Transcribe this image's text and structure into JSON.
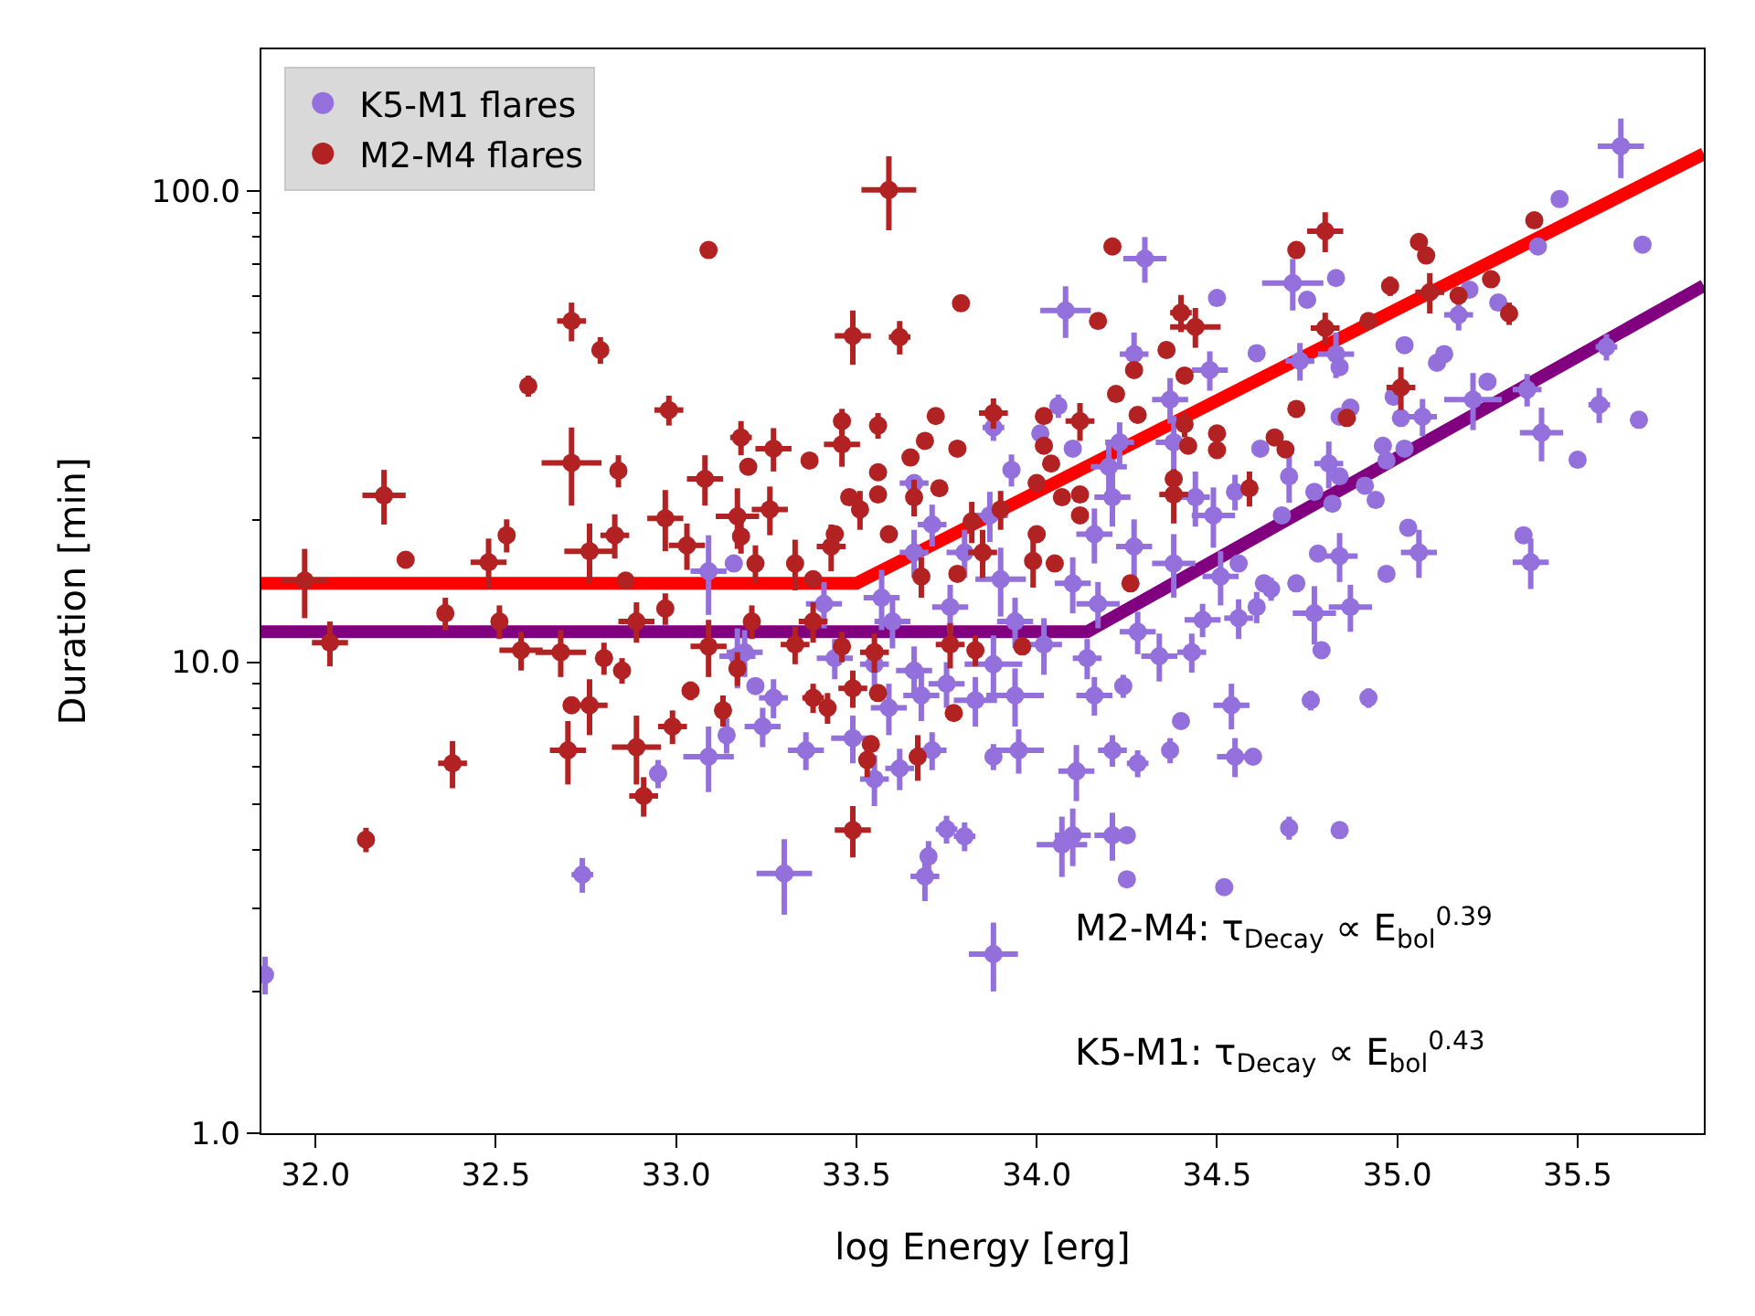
{
  "chart_data": {
    "type": "scatter",
    "xlabel": "log Energy [erg]",
    "ylabel": "Duration [min]",
    "xlim": [
      31.85,
      35.85
    ],
    "xticks": [
      {
        "value": 32,
        "label": "32.0"
      },
      {
        "value": 32.5,
        "label": "32.5"
      },
      {
        "value": 33,
        "label": "33.0"
      },
      {
        "value": 33.5,
        "label": "33.5"
      },
      {
        "value": 34,
        "label": "34.0"
      },
      {
        "value": 34.5,
        "label": "34.5"
      },
      {
        "value": 35,
        "label": "35.0"
      },
      {
        "value": 35.5,
        "label": "35.5"
      }
    ],
    "ylim": [
      1,
      200
    ],
    "yticks": [
      {
        "value": 1,
        "label": "1.0"
      },
      {
        "value": 2,
        "label": null
      },
      {
        "value": 3,
        "label": null
      },
      {
        "value": 4,
        "label": null
      },
      {
        "value": 5,
        "label": null
      },
      {
        "value": 6,
        "label": null
      },
      {
        "value": 7,
        "label": null
      },
      {
        "value": 8,
        "label": null
      },
      {
        "value": 9,
        "label": null
      },
      {
        "value": 10,
        "label": "10.0"
      },
      {
        "value": 20,
        "label": null
      },
      {
        "value": 30,
        "label": null
      },
      {
        "value": 40,
        "label": null
      },
      {
        "value": 50,
        "label": null
      },
      {
        "value": 60,
        "label": null
      },
      {
        "value": 70,
        "label": null
      },
      {
        "value": 80,
        "label": null
      },
      {
        "value": 90,
        "label": null
      },
      {
        "value": 100,
        "label": "100.0"
      }
    ],
    "log": "y",
    "legend": "top left",
    "marker": "circle",
    "series": [
      {
        "type": "line",
        "marker": "none",
        "color": "#800080",
        "x": [
          31.85,
          34.14,
          35.85
        ],
        "values": [
          11.6,
          11.6,
          63
        ]
      },
      {
        "type": "line",
        "marker": "none",
        "color": "#ff0000",
        "x": [
          31.85,
          33.5,
          35.85
        ],
        "values": [
          14.7,
          14.7,
          120
        ]
      },
      {
        "name": "K5-M1 flares",
        "color": "#9370db",
        "x": [
          31.86,
          32.74,
          32.95,
          33.09,
          33.14,
          33.17,
          33.09,
          33.16,
          33.3,
          33.69,
          33.7,
          33.75,
          33.8,
          33.88,
          34.07,
          34.1,
          34.21,
          34.25,
          34.25,
          34.52,
          34.11,
          34.37,
          34.4,
          34.21,
          34.28,
          33.95,
          33.88,
          33.71,
          33.62,
          33.55,
          33.36,
          33.24,
          33.27,
          33.49,
          33.59,
          33.68,
          33.83,
          33.94,
          34.16,
          34.24,
          34.54,
          34.55,
          34.46,
          34.34,
          34.43,
          34.14,
          34.02,
          33.88,
          33.75,
          33.66,
          33.55,
          33.44,
          33.19,
          33.76,
          33.94,
          34.17,
          34.28,
          33.6,
          33.41,
          34.87,
          34.77,
          34.79,
          34.61,
          34.56,
          34.65,
          34.76,
          34.92,
          34.6,
          34.7,
          34.84,
          34.3,
          34.08,
          34.5,
          34.27,
          34.48,
          34.37,
          34.06,
          34.1,
          34.23,
          33.93,
          34.01,
          34.2,
          34.21,
          34.38,
          34.49,
          34.55,
          34.44,
          33.87,
          33.71,
          33.66,
          33.88,
          34.16,
          34.27,
          34.38,
          34.51,
          34.1,
          33.9,
          33.8,
          33.66,
          33.57,
          35.62,
          35.45,
          35.39,
          35.68,
          34.71,
          34.83,
          34.75,
          35.2,
          35.28,
          35.17,
          34.61,
          34.73,
          34.83,
          34.84,
          35.02,
          35.11,
          35.13,
          35.58,
          35.25,
          35.36,
          35.21,
          35.56,
          35.67,
          35.4,
          35.5,
          34.99,
          35.01,
          35.07,
          34.87,
          34.84,
          34.96,
          35.02,
          34.97,
          34.81,
          34.84,
          34.91,
          34.94,
          34.82,
          34.77,
          34.7,
          34.62,
          34.68,
          35.03,
          35.06,
          35.35,
          35.37,
          34.78,
          34.84,
          34.97,
          34.72,
          34.56,
          34.63,
          33.22
        ],
        "values": [
          2.17,
          3.54,
          5.8,
          6.3,
          7.0,
          10.3,
          15.6,
          16.2,
          3.56,
          3.51,
          3.87,
          4.42,
          4.27,
          2.4,
          4.1,
          4.29,
          4.29,
          4.29,
          3.46,
          3.33,
          5.87,
          6.5,
          7.5,
          6.5,
          6.1,
          6.5,
          6.3,
          6.5,
          5.95,
          5.65,
          6.5,
          7.3,
          8.4,
          6.9,
          8.0,
          8.5,
          8.3,
          8.5,
          8.5,
          8.9,
          8.1,
          6.3,
          12.3,
          10.3,
          10.5,
          10.2,
          10.9,
          9.9,
          9.0,
          9.6,
          9.9,
          10.2,
          10.5,
          13.1,
          12.2,
          13.3,
          11.6,
          12.2,
          13.3,
          13.1,
          12.7,
          10.6,
          13.1,
          12.4,
          14.3,
          8.3,
          8.4,
          6.3,
          4.45,
          4.4,
          71.9,
          55.8,
          59.3,
          45.1,
          41.7,
          36.1,
          35.0,
          28.4,
          29.3,
          25.6,
          30.6,
          26.0,
          22.4,
          29.3,
          20.5,
          23.0,
          22.4,
          20.5,
          19.6,
          24.0,
          31.5,
          18.7,
          17.6,
          16.2,
          15.2,
          14.7,
          15.0,
          17.1,
          17.1,
          13.7,
          124.6,
          96.2,
          76.3,
          77.0,
          63.8,
          65.4,
          58.8,
          61.8,
          58.0,
          54.6,
          45.3,
          43.6,
          45.1,
          42.3,
          47.1,
          43.2,
          45.1,
          46.7,
          39.4,
          37.9,
          36.1,
          35.2,
          32.7,
          30.7,
          26.9,
          36.6,
          33.0,
          33.2,
          34.7,
          33.2,
          28.8,
          28.4,
          26.8,
          26.4,
          24.8,
          23.7,
          22.1,
          21.7,
          23.0,
          24.8,
          28.4,
          20.5,
          19.3,
          17.1,
          18.6,
          16.3,
          17.0,
          16.8,
          15.4,
          14.7,
          16.2,
          14.7,
          8.9
        ],
        "xerrors": [
          null,
          0.03,
          null,
          0.07,
          null,
          0.05,
          0.05,
          null,
          0.077,
          0.04,
          null,
          0.03,
          0.03,
          0.068,
          0.07,
          0.05,
          0.05,
          null,
          null,
          null,
          0.05,
          null,
          null,
          0.04,
          0.03,
          0.07,
          null,
          0.04,
          0.04,
          0.04,
          0.05,
          0.05,
          0.04,
          0.06,
          0.05,
          0.05,
          0.06,
          0.08,
          0.05,
          null,
          0.05,
          0.05,
          0.05,
          0.05,
          0.04,
          0.04,
          0.05,
          0.08,
          0.05,
          0.05,
          0.04,
          0.05,
          0.05,
          0.05,
          0.05,
          0.06,
          0.05,
          0.05,
          0.05,
          0.06,
          0.06,
          null,
          null,
          0.04,
          null,
          null,
          null,
          null,
          null,
          null,
          0.06,
          0.07,
          null,
          0.04,
          0.05,
          0.05,
          null,
          null,
          0.04,
          null,
          null,
          0.05,
          0.05,
          0.05,
          0.06,
          null,
          0.04,
          0.05,
          0.04,
          0.04,
          0.03,
          0.05,
          0.05,
          0.06,
          0.05,
          0.05,
          0.07,
          0.05,
          0.04,
          0.05,
          0.064,
          null,
          null,
          null,
          0.085,
          null,
          null,
          null,
          null,
          0.04,
          null,
          0.04,
          0.05,
          null,
          null,
          null,
          null,
          0.03,
          null,
          0.04,
          0.08,
          0.03,
          null,
          0.06,
          null,
          null,
          null,
          0.04,
          null,
          null,
          null,
          null,
          null,
          0.04,
          null,
          null,
          null,
          null,
          null,
          null,
          null,
          null,
          null,
          0.05,
          null,
          0.05,
          null,
          0.05,
          null,
          null,
          null,
          null,
          null
        ],
        "errors": [
          0.2,
          0.3,
          0.4,
          1.0,
          0.6,
          1.5,
          3,
          null,
          0.65,
          0.4,
          0.3,
          0.3,
          0.3,
          0.4,
          0.6,
          0.6,
          0.5,
          null,
          null,
          null,
          0.8,
          0.4,
          0.3,
          0.5,
          0.4,
          0.7,
          0.4,
          0.6,
          0.6,
          0.7,
          0.6,
          0.7,
          0.8,
          0.8,
          1.0,
          1.0,
          1.0,
          1.2,
          0.8,
          0.5,
          0.9,
          0.6,
          1.0,
          1.2,
          1.0,
          1.0,
          1.5,
          1.5,
          1.0,
          1.2,
          1.0,
          1.0,
          1.2,
          1.5,
          1.5,
          1.5,
          1.2,
          1.5,
          1.5,
          1.5,
          1.8,
          null,
          1.0,
          1.2,
          0.8,
          0.4,
          0.4,
          null,
          0.25,
          null,
          8,
          7,
          null,
          5,
          4,
          4,
          2,
          null,
          3,
          2,
          null,
          3,
          3,
          4,
          3,
          2,
          3,
          2.5,
          2,
          null,
          2,
          2.5,
          2.5,
          2.5,
          2,
          2,
          2.5,
          2,
          2,
          2,
          18,
          null,
          null,
          null,
          8,
          null,
          null,
          null,
          null,
          4,
          null,
          4,
          5,
          null,
          null,
          null,
          null,
          3,
          null,
          3,
          5,
          3,
          null,
          4,
          null,
          null,
          null,
          3,
          null,
          null,
          null,
          null,
          null,
          3,
          null,
          null,
          null,
          null,
          null,
          3,
          null,
          null,
          null,
          2,
          null,
          2,
          null,
          2,
          null,
          null,
          null,
          null,
          null
        ]
      },
      {
        "name": "M2-M4 flares",
        "color": "#b22222",
        "x": [
          33.09,
          32.71,
          32.79,
          32.59,
          32.98,
          32.71,
          32.84,
          32.19,
          33.08,
          33.18,
          32.97,
          32.25,
          32.48,
          32.53,
          32.76,
          32.83,
          31.97,
          32.86,
          33.17,
          33.03,
          32.04,
          32.36,
          32.51,
          32.57,
          32.68,
          32.8,
          32.85,
          32.71,
          32.76,
          32.7,
          32.89,
          32.91,
          32.38,
          32.14,
          32.99,
          33.04,
          33.13,
          32.97,
          32.89,
          33.09,
          33.49,
          33.53,
          33.54,
          33.67,
          33.77,
          33.56,
          33.42,
          33.38,
          33.49,
          33.17,
          33.21,
          33.33,
          33.96,
          33.76,
          33.83,
          33.55,
          33.38,
          33.46,
          33.59,
          33.49,
          33.62,
          33.79,
          34.21,
          34.17,
          34.4,
          34.44,
          34.36,
          34.41,
          34.27,
          34.22,
          34.28,
          34.02,
          34.12,
          33.88,
          33.72,
          33.69,
          33.56,
          33.46,
          33.46,
          33.78,
          33.65,
          33.37,
          33.27,
          33.2,
          33.56,
          34.02,
          34.04,
          34.41,
          34.42,
          34.5,
          34.5,
          34.38,
          34.38,
          34.12,
          34.07,
          34.0,
          33.9,
          33.82,
          33.73,
          33.66,
          33.56,
          33.48,
          33.51,
          33.26,
          33.59,
          33.44,
          33.43,
          33.18,
          33.33,
          33.38,
          33.22,
          33.68,
          33.78,
          33.85,
          33.99,
          34.05,
          34.26,
          34.12,
          34.0,
          34.8,
          34.72,
          35.06,
          35.08,
          35.38,
          34.98,
          35.09,
          35.17,
          35.26,
          35.31,
          34.92,
          34.8,
          35.01,
          34.72,
          34.86,
          34.66,
          34.69,
          34.59
        ],
        "values": [
          75,
          53,
          46,
          38.6,
          34.3,
          26.5,
          25.5,
          22.6,
          24.5,
          30.0,
          20.2,
          16.5,
          16.3,
          18.6,
          17.2,
          18.6,
          14.9,
          14.9,
          20.4,
          17.7,
          11.0,
          12.7,
          12.2,
          10.6,
          10.5,
          10.2,
          9.6,
          8.1,
          8.1,
          6.5,
          6.6,
          5.2,
          6.1,
          4.2,
          7.3,
          8.7,
          7.9,
          13.0,
          12.2,
          10.8,
          4.4,
          6.2,
          6.7,
          6.3,
          7.8,
          8.6,
          8.0,
          8.4,
          8.8,
          9.7,
          12.2,
          10.9,
          10.8,
          10.9,
          10.6,
          10.5,
          12.2,
          10.8,
          100.6,
          49.3,
          49.0,
          57.8,
          76.3,
          53.0,
          55.2,
          51.5,
          46.0,
          40.6,
          41.7,
          37.1,
          33.5,
          33.3,
          32.5,
          33.8,
          33.3,
          29.5,
          31.8,
          32.5,
          29.0,
          28.4,
          27.2,
          26.8,
          28.4,
          26.0,
          25.3,
          28.8,
          26.4,
          32.0,
          28.8,
          30.6,
          28.2,
          24.5,
          22.7,
          22.7,
          22.4,
          24.0,
          21.1,
          19.9,
          23.4,
          22.4,
          22.7,
          22.4,
          21.1,
          21.1,
          18.7,
          18.7,
          17.6,
          18.5,
          16.2,
          15.0,
          16.2,
          15.2,
          15.4,
          17.1,
          16.4,
          16.2,
          14.7,
          20.5,
          18.7,
          82.2,
          75.0,
          78.0,
          73.0,
          86.7,
          62.9,
          61.0,
          60.0,
          65.0,
          55.0,
          53.0,
          51.2,
          38.3,
          34.5,
          33.0,
          30.0,
          28.3,
          23.4
        ],
        "xerrors": [
          null,
          0.04,
          null,
          null,
          0.04,
          0.083,
          null,
          0.06,
          0.05,
          0.03,
          0.05,
          null,
          0.05,
          null,
          0.07,
          0.04,
          0.064,
          null,
          0.06,
          0.05,
          0.05,
          null,
          null,
          0.06,
          0.07,
          null,
          null,
          null,
          0.05,
          0.05,
          0.068,
          0.04,
          0.04,
          null,
          0.04,
          null,
          null,
          null,
          0.05,
          0.05,
          0.05,
          null,
          null,
          null,
          null,
          null,
          null,
          0.03,
          0.04,
          null,
          null,
          0.04,
          null,
          0.04,
          null,
          0.04,
          0.04,
          null,
          0.076,
          0.05,
          0.03,
          null,
          null,
          null,
          0.03,
          0.07,
          null,
          null,
          null,
          null,
          null,
          null,
          0.04,
          0.04,
          null,
          null,
          null,
          null,
          0.05,
          null,
          null,
          null,
          0.05,
          null,
          null,
          null,
          null,
          null,
          null,
          null,
          null,
          null,
          0.04,
          null,
          null,
          null,
          null,
          null,
          null,
          null,
          null,
          null,
          null,
          0.05,
          null,
          null,
          0.04,
          null,
          null,
          null,
          null,
          null,
          null,
          0.04,
          null,
          null,
          null,
          null,
          null,
          0.05,
          null,
          null,
          null,
          null,
          null,
          0.04,
          null,
          null,
          null,
          null,
          0.04,
          0.04,
          null,
          null,
          null,
          null,
          null
        ],
        "errors": [
          3,
          5,
          3,
          2,
          2.5,
          5,
          2,
          3,
          3,
          2.5,
          3,
          null,
          2,
          1.5,
          2.5,
          2,
          2.5,
          null,
          3,
          2,
          1.2,
          1,
          1,
          1,
          1.2,
          0.8,
          0.6,
          null,
          1.1,
          1.0,
          1.1,
          0.5,
          0.7,
          0.25,
          0.6,
          0.4,
          0.6,
          1,
          1.2,
          1.5,
          0.55,
          0.5,
          null,
          0.7,
          null,
          null,
          0.6,
          0.6,
          0.8,
          0.8,
          1,
          1,
          null,
          1.2,
          0.8,
          1,
          1.2,
          0.8,
          18,
          6.5,
          4,
          2,
          null,
          null,
          5,
          5,
          null,
          null,
          null,
          null,
          null,
          null,
          3,
          2.5,
          null,
          null,
          2,
          2,
          3,
          null,
          null,
          null,
          3,
          null,
          null,
          null,
          null,
          2,
          null,
          null,
          null,
          null,
          3,
          null,
          null,
          null,
          2,
          2,
          null,
          2,
          null,
          null,
          2,
          2.5,
          null,
          null,
          2,
          1.5,
          2,
          null,
          1.5,
          1.5,
          null,
          2,
          2,
          null,
          null,
          null,
          null,
          8,
          3,
          null,
          null,
          3,
          3,
          6,
          null,
          null,
          3,
          null,
          4,
          4,
          null,
          null,
          null,
          null,
          2
        ]
      }
    ],
    "annotations": [
      "M2-M4: τ$_{Decay}$ ∝ E$_{bol}$$^{0.39}$",
      "K5-M1: τ$_{Decay}$ ∝ E$_{bol}$$^{0.43}$"
    ]
  }
}
